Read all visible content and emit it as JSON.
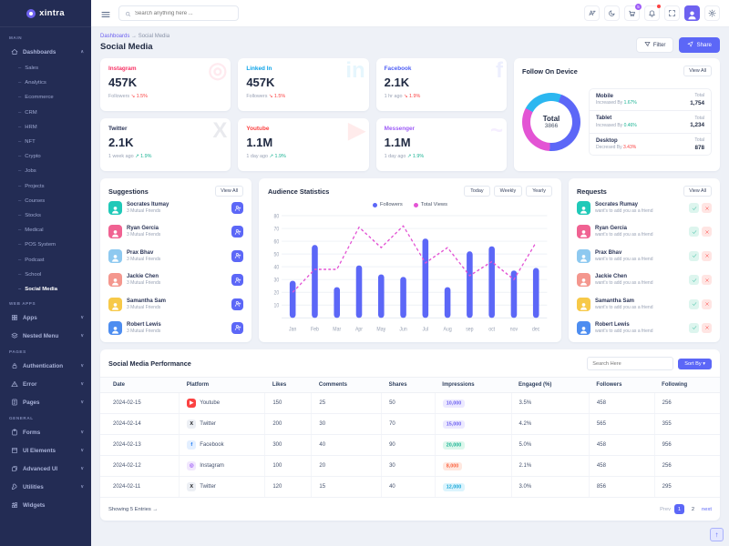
{
  "app": {
    "logo_text": "xintra"
  },
  "topbar": {
    "search_placeholder": "Search anything here ...",
    "cart_badge": "5"
  },
  "breadcrumb": {
    "parent": "Dashboards",
    "separator": "→",
    "current": "Social Media"
  },
  "page": {
    "title": "Social Media",
    "filter_label": "Filter",
    "share_label": "Share"
  },
  "sidebar": {
    "sections": [
      {
        "label": "MAIN",
        "items": [
          {
            "label": "Dashboards",
            "icon": "home",
            "chevron": "up",
            "children": [
              "Sales",
              "Analytics",
              "Ecommerce",
              "CRM",
              "HRM",
              "NFT",
              "Crypto",
              "Jobs",
              "Projects",
              "Courses",
              "Stocks",
              "Medical",
              "POS System",
              "Podcast",
              "School",
              "Social Media"
            ],
            "active_child": "Social Media"
          }
        ]
      },
      {
        "label": "WEB APPS",
        "items": [
          {
            "label": "Apps",
            "icon": "grid",
            "chevron": "down"
          },
          {
            "label": "Nested Menu",
            "icon": "layers",
            "chevron": "down"
          }
        ]
      },
      {
        "label": "PAGES",
        "items": [
          {
            "label": "Authentication",
            "icon": "lock",
            "chevron": "down"
          },
          {
            "label": "Error",
            "icon": "warning",
            "chevron": "down"
          },
          {
            "label": "Pages",
            "icon": "file",
            "chevron": "down"
          }
        ]
      },
      {
        "label": "GENERAL",
        "items": [
          {
            "label": "Forms",
            "icon": "clipboard",
            "chevron": "down"
          },
          {
            "label": "UI Elements",
            "icon": "box",
            "chevron": "down"
          },
          {
            "label": "Advanced UI",
            "icon": "stack",
            "chevron": "down"
          },
          {
            "label": "Utilities",
            "icon": "wrench",
            "chevron": "down"
          },
          {
            "label": "Widgets",
            "icon": "widget",
            "chevron": null
          }
        ]
      }
    ]
  },
  "stat_columns": [
    [
      {
        "platform": "Instagram",
        "color": "#f73164",
        "value": "457K",
        "context": "Followers",
        "delta": "1.5%",
        "trend": "down",
        "watermark": "◎"
      },
      {
        "platform": "Twitter",
        "color": "#2b3557",
        "value": "2.1K",
        "context": "1 week ago",
        "delta": "1.9%",
        "trend": "up",
        "watermark": "X"
      }
    ],
    [
      {
        "platform": "Linked In",
        "color": "#0ca3e8",
        "value": "457K",
        "context": "Followers",
        "delta": "1.5%",
        "trend": "down",
        "watermark": "in"
      },
      {
        "platform": "Youtube",
        "color": "#fb4242",
        "value": "1.1M",
        "context": "1 day ago",
        "delta": "1.9%",
        "trend": "up",
        "watermark": "▶"
      }
    ],
    [
      {
        "platform": "Facebook",
        "color": "#4f5ff5",
        "value": "2.1K",
        "context": "1 hr ago",
        "delta": "1.9%",
        "trend": "down",
        "watermark": "f"
      },
      {
        "platform": "Messenger",
        "color": "#9e5cf7",
        "value": "1.1M",
        "context": "1 day ago",
        "delta": "1.9%",
        "trend": "up",
        "watermark": "~"
      }
    ]
  ],
  "device_panel": {
    "title": "Follow On Device",
    "view_all": "View All",
    "total_label": "Total",
    "total_value": "3866",
    "segments": [
      {
        "name": "Mobile",
        "value": 1754,
        "color": "#5c67f7"
      },
      {
        "name": "Tablet",
        "value": 1234,
        "color": "#e354d4"
      },
      {
        "name": "Desktop",
        "value": 878,
        "color": "#2bb7f0"
      }
    ],
    "rows": [
      {
        "name": "Mobile",
        "change_label": "Increased By",
        "change": "1.67%",
        "trend": "up",
        "total_label": "Total",
        "value": "1,754"
      },
      {
        "name": "Tablet",
        "change_label": "Increased By",
        "change": "0.46%",
        "trend": "up",
        "total_label": "Total",
        "value": "1,234"
      },
      {
        "name": "Desktop",
        "change_label": "Decresed By",
        "change": "3.43%",
        "trend": "down",
        "total_label": "Total",
        "value": "878"
      }
    ]
  },
  "suggestions": {
    "title": "Suggestions",
    "view_all": "View All",
    "mutual_label": "3 Mutual Friends",
    "people": [
      {
        "name": "Socrates Itumay",
        "avatar_color": "#20c9b8"
      },
      {
        "name": "Ryan Gercia",
        "avatar_color": "#f06292"
      },
      {
        "name": "Prax Bhav",
        "avatar_color": "#8ec9f0"
      },
      {
        "name": "Jackie Chen",
        "avatar_color": "#f4978e"
      },
      {
        "name": "Samantha Sam",
        "avatar_color": "#f7c948"
      },
      {
        "name": "Robert Lewis",
        "avatar_color": "#4d8df0"
      }
    ]
  },
  "requests": {
    "title": "Requests",
    "view_all": "View All",
    "subtitle": "want's to add you as a friend",
    "people": [
      {
        "name": "Socrates Rumay",
        "avatar_color": "#20c9b8"
      },
      {
        "name": "Ryan Gercia",
        "avatar_color": "#f06292"
      },
      {
        "name": "Prax Bhav",
        "avatar_color": "#8ec9f0"
      },
      {
        "name": "Jackie Chen",
        "avatar_color": "#f4978e"
      },
      {
        "name": "Samantha Sam",
        "avatar_color": "#f7c948"
      },
      {
        "name": "Robert Lewis",
        "avatar_color": "#4d8df0"
      }
    ]
  },
  "chart_panel": {
    "title": "Audience Statistics",
    "range_buttons": [
      "Today",
      "Weekly",
      "Yearly"
    ]
  },
  "chart_data": {
    "type": "bar",
    "title": "Audience Statistics",
    "categories": [
      "Jan",
      "Feb",
      "Mar",
      "Apr",
      "May",
      "Jun",
      "Jul",
      "Aug",
      "sep",
      "oct",
      "nov",
      "dec"
    ],
    "series": [
      {
        "name": "Followers",
        "render": "bar",
        "color": "#5c67f7",
        "values": [
          29,
          57,
          24,
          41,
          34,
          32,
          62,
          24,
          52,
          56,
          37,
          39
        ]
      },
      {
        "name": "Total Views",
        "render": "dashed-line",
        "color": "#e354d4",
        "values": [
          20,
          38,
          38,
          71,
          55,
          72,
          43,
          55,
          33,
          44,
          30,
          59
        ]
      }
    ],
    "ylim": [
      0,
      80
    ],
    "yticks": [
      10,
      20,
      30,
      40,
      50,
      60,
      70,
      80
    ],
    "grid": true,
    "legend_position": "top-center"
  },
  "table": {
    "title": "Social Media Performance",
    "search_placeholder": "Search Here",
    "sort_label": "Sort By",
    "sort_caret": "▾",
    "headers": [
      "Date",
      "Platform",
      "Likes",
      "Comments",
      "Shares",
      "Impressions",
      "Engaged (%)",
      "Followers",
      "Following"
    ],
    "rows": [
      {
        "date": "2024-02-15",
        "platform": "Youtube",
        "platform_icon": "youtube",
        "likes": "150",
        "comments": "25",
        "shares": "50",
        "impressions": "10,000",
        "impressions_color": "purple",
        "engaged": "3.5%",
        "followers": "458",
        "following": "256"
      },
      {
        "date": "2024-02-14",
        "platform": "Twitter",
        "platform_icon": "twitter",
        "likes": "200",
        "comments": "30",
        "shares": "70",
        "impressions": "15,000",
        "impressions_color": "purple",
        "engaged": "4.2%",
        "followers": "565",
        "following": "355"
      },
      {
        "date": "2024-02-13",
        "platform": "Facebook",
        "platform_icon": "facebook",
        "likes": "300",
        "comments": "40",
        "shares": "90",
        "impressions": "20,000",
        "impressions_color": "green",
        "engaged": "5.0%",
        "followers": "458",
        "following": "956"
      },
      {
        "date": "2024-02-12",
        "platform": "Instagram",
        "platform_icon": "instagram",
        "likes": "100",
        "comments": "20",
        "shares": "30",
        "impressions": "8,000",
        "impressions_color": "orange",
        "engaged": "2.1%",
        "followers": "458",
        "following": "256"
      },
      {
        "date": "2024-02-11",
        "platform": "Twitter",
        "platform_icon": "twitter",
        "likes": "120",
        "comments": "15",
        "shares": "40",
        "impressions": "12,000",
        "impressions_color": "cyan",
        "engaged": "3.0%",
        "followers": "856",
        "following": "295"
      }
    ],
    "footer": {
      "showing": "Showing 5 Entries",
      "arrow": "→",
      "prev": "Prev",
      "pages": [
        "1",
        "2"
      ],
      "active_page": "1",
      "next": "next"
    }
  },
  "misc": {
    "scroll_top": "↑"
  },
  "colors": {
    "primary": "#5c67f7",
    "secondary": "#e354d4",
    "info": "#2bb7f0",
    "success": "#1bb394",
    "danger": "#fb4242",
    "sidebar_bg": "#232c54"
  }
}
